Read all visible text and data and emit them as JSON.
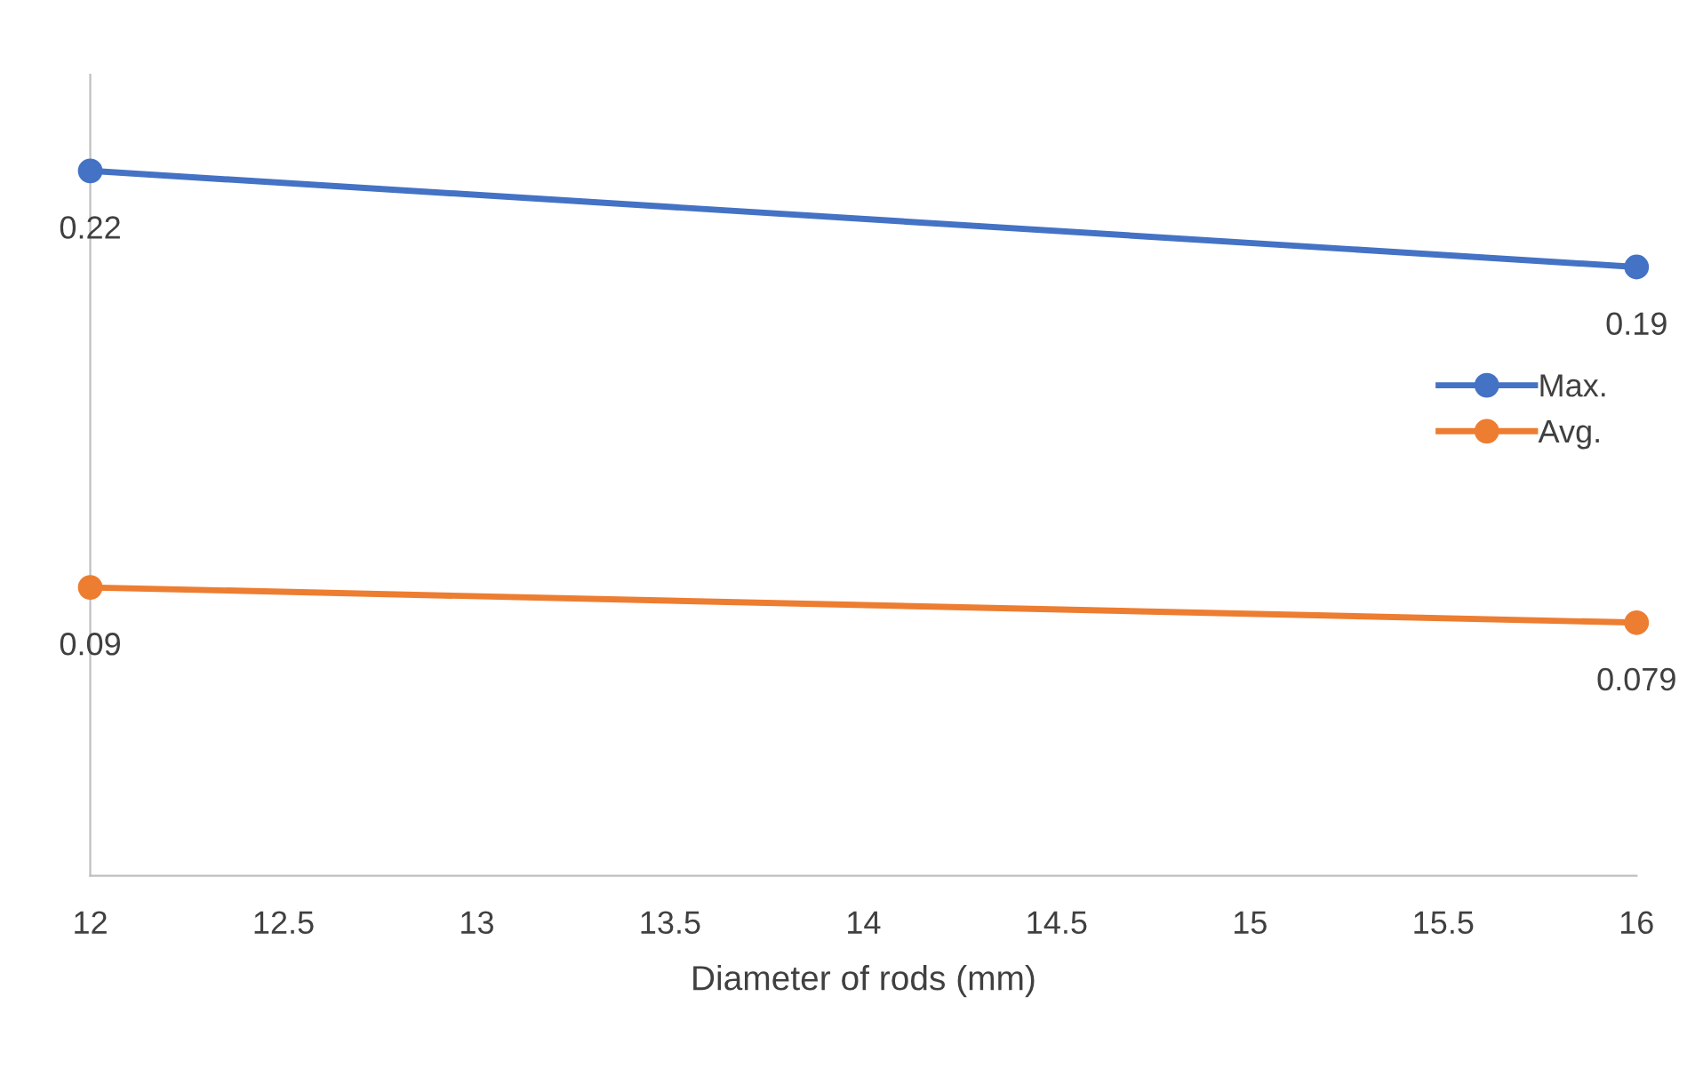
{
  "chart_data": {
    "type": "line",
    "xlabel": "Diameter of rods (mm)",
    "x": [
      12,
      16
    ],
    "series": [
      {
        "name": "Max.",
        "color": "#4472c4",
        "values": [
          0.22,
          0.19
        ]
      },
      {
        "name": "Avg.",
        "color": "#ed7d31",
        "values": [
          0.09,
          0.079
        ]
      }
    ],
    "xlim": [
      12,
      16
    ],
    "xticks": [
      12,
      12.5,
      13,
      13.5,
      14,
      14.5,
      15,
      15.5,
      16
    ],
    "ylim": [
      0,
      0.25
    ],
    "tick_labels": "x",
    "data_labels": true,
    "marker": "circle",
    "line_style": "solid",
    "grid": false,
    "legend": "right"
  }
}
